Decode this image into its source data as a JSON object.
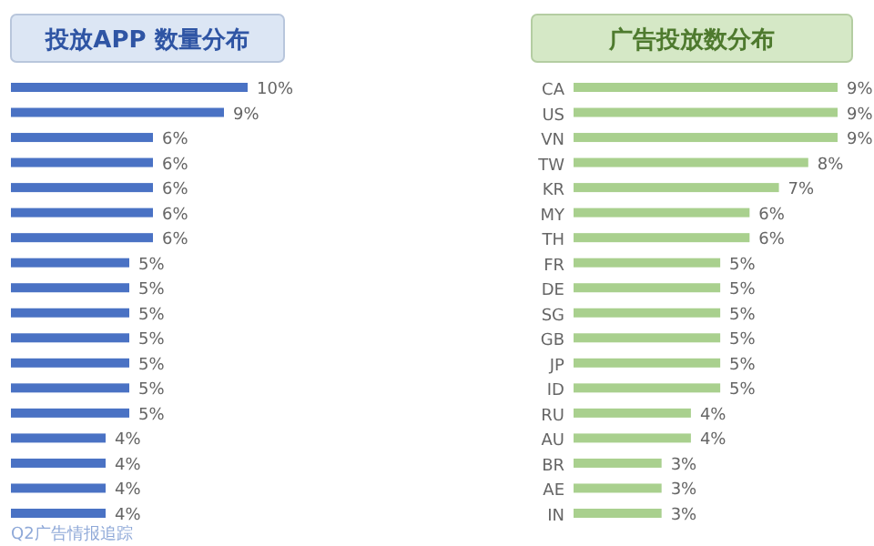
{
  "chart_data": [
    {
      "type": "bar",
      "orientation": "horizontal",
      "title": "投放APP 数量分布",
      "color": "#4a72c4",
      "categories": [
        null,
        null,
        null,
        null,
        null,
        null,
        null,
        null,
        null,
        null,
        null,
        null,
        null,
        null,
        null,
        null,
        null,
        null
      ],
      "values": [
        10,
        9,
        6,
        6,
        6,
        6,
        6,
        5,
        5,
        5,
        5,
        5,
        5,
        5,
        4,
        4,
        4,
        4
      ],
      "value_labels": [
        "10%",
        "9%",
        "6%",
        "6%",
        "6%",
        "6%",
        "6%",
        "5%",
        "5%",
        "5%",
        "5%",
        "5%",
        "5%",
        "5%",
        "4%",
        "4%",
        "4%",
        "4%"
      ],
      "annotations": [
        "Q2广告情报追踪"
      ]
    },
    {
      "type": "bar",
      "orientation": "horizontal",
      "title": "广告投放数分布",
      "color": "#a9d08e",
      "categories": [
        "CA",
        "US",
        "VN",
        "TW",
        "KR",
        "MY",
        "TH",
        "FR",
        "DE",
        "SG",
        "GB",
        "JP",
        "ID",
        "RU",
        "AU",
        "BR",
        "AE",
        "IN"
      ],
      "values": [
        9,
        9,
        9,
        8,
        7,
        6,
        6,
        5,
        5,
        5,
        5,
        5,
        5,
        4,
        4,
        3,
        3,
        3
      ],
      "value_labels": [
        "9%",
        "9%",
        "9%",
        "8%",
        "7%",
        "6%",
        "6%",
        "5%",
        "5%",
        "5%",
        "5%",
        "5%",
        "5%",
        "4%",
        "4%",
        "3%",
        "3%",
        "3%"
      ]
    }
  ]
}
